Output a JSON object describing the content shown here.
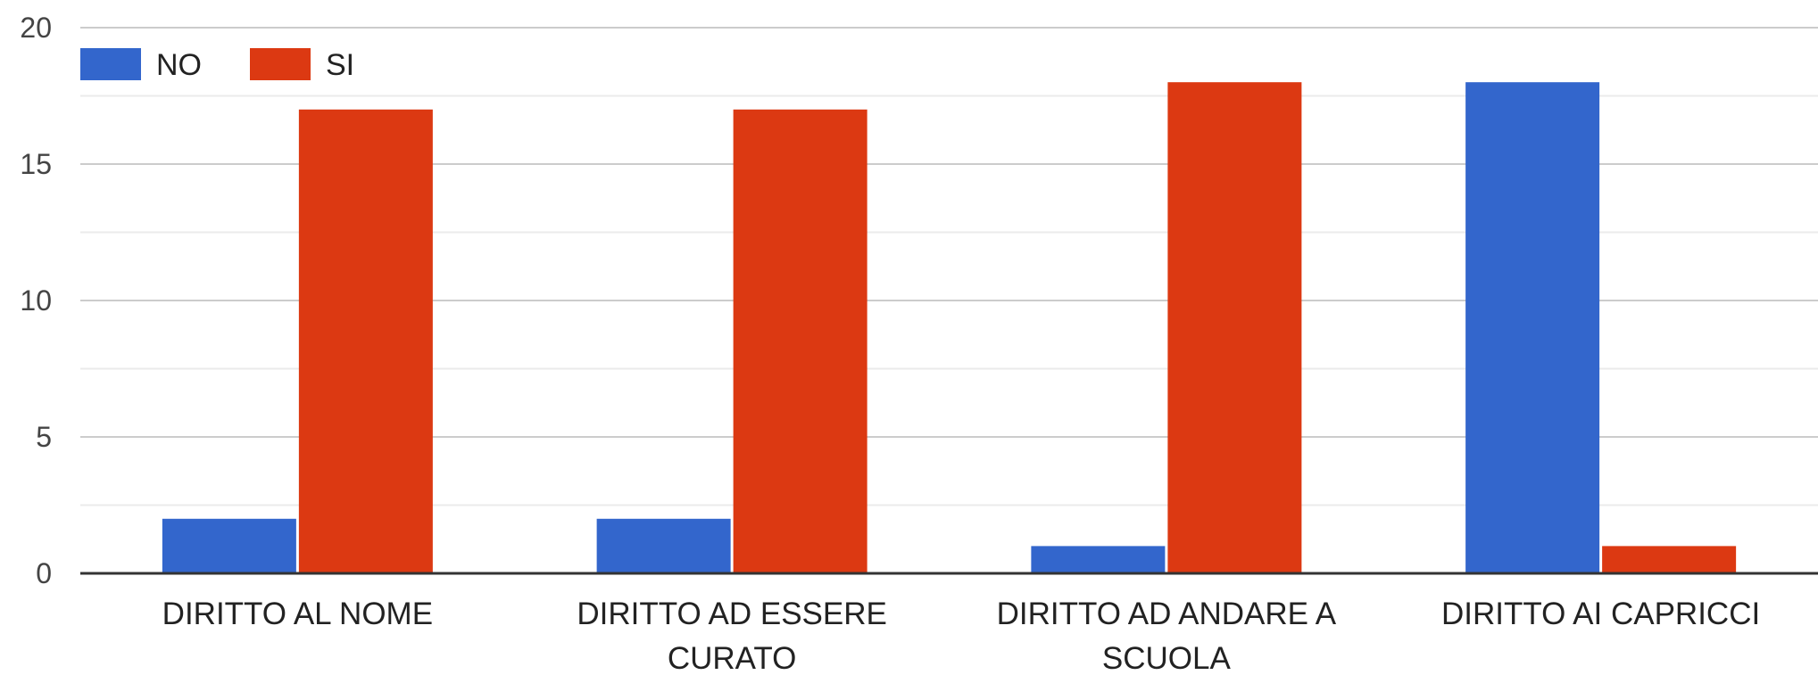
{
  "chart_data": {
    "type": "bar",
    "categories": [
      [
        "DIRITTO AL NOME"
      ],
      [
        "DIRITTO AD ESSERE",
        "CURATO"
      ],
      [
        "DIRITTO AD ANDARE A",
        "SCUOLA"
      ],
      [
        "DIRITTO AI CAPRICCI"
      ]
    ],
    "series": [
      {
        "name": "NO",
        "color": "#3366CC",
        "values": [
          2,
          2,
          1,
          18
        ]
      },
      {
        "name": "SI",
        "color": "#DC3912",
        "values": [
          17,
          17,
          18,
          1
        ]
      }
    ],
    "y_ticks": [
      0,
      5,
      10,
      15,
      20
    ],
    "ylim": [
      0,
      20
    ],
    "grid": true,
    "legend_position": "top-left"
  }
}
